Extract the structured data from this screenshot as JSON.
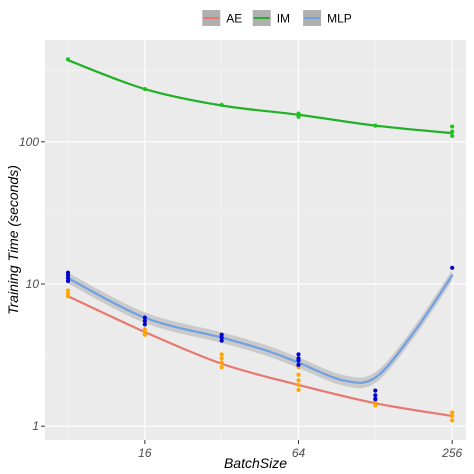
{
  "chart_data": {
    "type": "line",
    "xlabel": "BatchSize",
    "ylabel": "Training Time (seconds)",
    "x_scale": "log2",
    "y_scale": "log10",
    "xlim": [
      6.5,
      290
    ],
    "ylim": [
      0.8,
      520
    ],
    "x_ticks": [
      16,
      64,
      256
    ],
    "x_tick_labels": [
      "16",
      "64",
      "256"
    ],
    "y_ticks": [
      1,
      10,
      100
    ],
    "y_tick_labels": [
      "1",
      "10",
      "100"
    ],
    "grid": true,
    "legend_position": "top",
    "background": "#ebebeb",
    "series": [
      {
        "name": "AE",
        "line_color": "#e8776f",
        "point_color": "#ffa500",
        "curve": [
          [
            8,
            8.2
          ],
          [
            16,
            4.6
          ],
          [
            32,
            2.75
          ],
          [
            64,
            1.95
          ],
          [
            128,
            1.45
          ],
          [
            256,
            1.18
          ]
        ],
        "points": [
          [
            8,
            8.2
          ],
          [
            8,
            8.6
          ],
          [
            8,
            9.0
          ],
          [
            16,
            4.4
          ],
          [
            16,
            4.6
          ],
          [
            16,
            4.8
          ],
          [
            32,
            2.6
          ],
          [
            32,
            2.8
          ],
          [
            32,
            3.0
          ],
          [
            32,
            3.2
          ],
          [
            64,
            1.8
          ],
          [
            64,
            1.95
          ],
          [
            64,
            2.1
          ],
          [
            64,
            2.3
          ],
          [
            64,
            2.6
          ],
          [
            128,
            1.4
          ],
          [
            128,
            1.5
          ],
          [
            128,
            1.58
          ],
          [
            256,
            1.1
          ],
          [
            256,
            1.18
          ],
          [
            256,
            1.25
          ]
        ]
      },
      {
        "name": "IM",
        "line_color": "#22b027",
        "point_color": "#1ec41e",
        "curve": [
          [
            8,
            375
          ],
          [
            16,
            235
          ],
          [
            32,
            180
          ],
          [
            64,
            155
          ],
          [
            128,
            130
          ],
          [
            256,
            115
          ]
        ],
        "points": [
          [
            8,
            380
          ],
          [
            16,
            235
          ],
          [
            32,
            182
          ],
          [
            64,
            150
          ],
          [
            64,
            158
          ],
          [
            128,
            130
          ],
          [
            256,
            110
          ],
          [
            256,
            118
          ],
          [
            256,
            128
          ]
        ]
      },
      {
        "name": "MLP",
        "line_color": "#6fa0e6",
        "point_color": "#0000cc",
        "band_color": "#c4c4c4",
        "curve": [
          [
            8,
            11.0
          ],
          [
            16,
            5.8
          ],
          [
            32,
            4.2
          ],
          [
            48,
            3.4
          ],
          [
            64,
            2.8
          ],
          [
            96,
            2.1
          ],
          [
            128,
            2.2
          ],
          [
            180,
            4.5
          ],
          [
            256,
            11.5
          ]
        ],
        "points": [
          [
            8,
            10.5
          ],
          [
            8,
            11.0
          ],
          [
            8,
            11.5
          ],
          [
            8,
            12.0
          ],
          [
            16,
            5.2
          ],
          [
            16,
            5.5
          ],
          [
            16,
            5.8
          ],
          [
            32,
            4.0
          ],
          [
            32,
            4.2
          ],
          [
            32,
            4.4
          ],
          [
            64,
            2.7
          ],
          [
            64,
            2.9
          ],
          [
            64,
            3.0
          ],
          [
            64,
            3.2
          ],
          [
            128,
            1.55
          ],
          [
            128,
            1.65
          ],
          [
            128,
            1.78
          ],
          [
            256,
            13.0
          ]
        ]
      }
    ]
  }
}
